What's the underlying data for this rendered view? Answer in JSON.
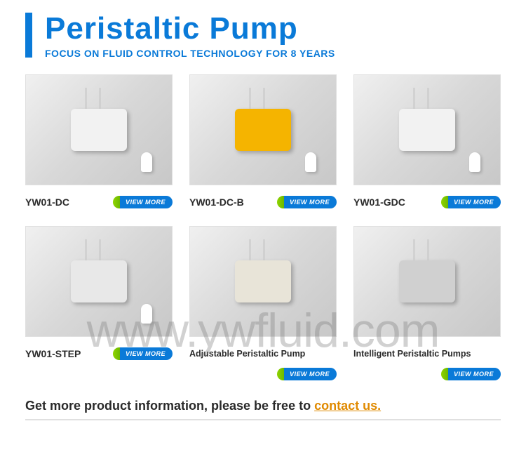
{
  "header": {
    "title": "Peristaltic Pump",
    "subtitle": "FOCUS ON FLUID CONTROL TECHNOLOGY FOR 8 YEARS",
    "accent_color": "#0a7ad8"
  },
  "view_more_label": "VIEW MORE",
  "products": [
    {
      "model": "YW01-DC",
      "pump_color": "#f2f2f2",
      "btn_inline": true,
      "show_airpod": true
    },
    {
      "model": "YW01-DC-B",
      "pump_color": "#f5b400",
      "btn_inline": true,
      "show_airpod": true
    },
    {
      "model": "YW01-GDC",
      "pump_color": "#f2f2f2",
      "btn_inline": true,
      "show_airpod": true
    },
    {
      "model": "YW01-STEP",
      "pump_color": "#e8e8e8",
      "btn_inline": true,
      "show_airpod": true
    },
    {
      "model": "Adjustable Peristaltic Pump",
      "pump_color": "#e8e4d8",
      "btn_inline": false,
      "show_airpod": false
    },
    {
      "model": "Intelligent Peristaltic Pumps",
      "pump_color": "#d0d0d0",
      "btn_inline": false,
      "show_airpod": false
    }
  ],
  "cta": {
    "prefix": "Get more product information, please be free to ",
    "link_text": "contact us.",
    "link_color": "#e08a00"
  },
  "watermark": "www.ywfluid.com"
}
